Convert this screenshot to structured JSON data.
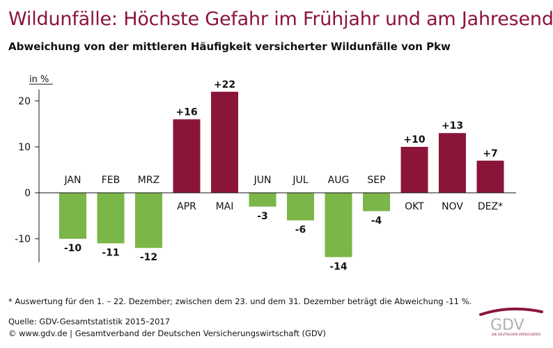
{
  "title": "Wildunfälle: Höchste Gefahr im Frühjahr und am Jahresende",
  "subtitle": "Abweichung von der mittleren Häufigkeit versicherter Wildunfälle von Pkw",
  "footnote": "* Auswertung für den 1. – 22. Dezember; zwischen dem 23. und dem 31. Dezember beträgt die Abweichung -11 %.",
  "source": "Quelle: GDV-Gesamtstatistik 2015–2017",
  "site": "© www.gdv.de | Gesamtverband der Deutschen Versicherungswirtschaft (GDV)",
  "logo": {
    "text": "GDV",
    "tagline": "DIE DEUTSCHEN VERSICHERER"
  },
  "colors": {
    "positive": "#8b1538",
    "negative": "#7ab648",
    "title": "#8b1538",
    "logo_gray": "#b0b0b0"
  },
  "chart_data": {
    "type": "bar",
    "ylabel": "in %",
    "ylim": [
      -16,
      24
    ],
    "yticks": [
      -10,
      0,
      10,
      20
    ],
    "grid": false,
    "categories": [
      "JAN",
      "FEB",
      "MRZ",
      "APR",
      "MAI",
      "JUN",
      "JUL",
      "AUG",
      "SEP",
      "OKT",
      "NOV",
      "DEZ*"
    ],
    "values": [
      -10,
      -11,
      -12,
      16,
      22,
      -3,
      -6,
      -14,
      -4,
      10,
      13,
      7
    ],
    "value_labels": [
      "-10",
      "-11",
      "-12",
      "+16",
      "+22",
      "-3",
      "-6",
      "-14",
      "-4",
      "+10",
      "+13",
      "+7"
    ]
  }
}
